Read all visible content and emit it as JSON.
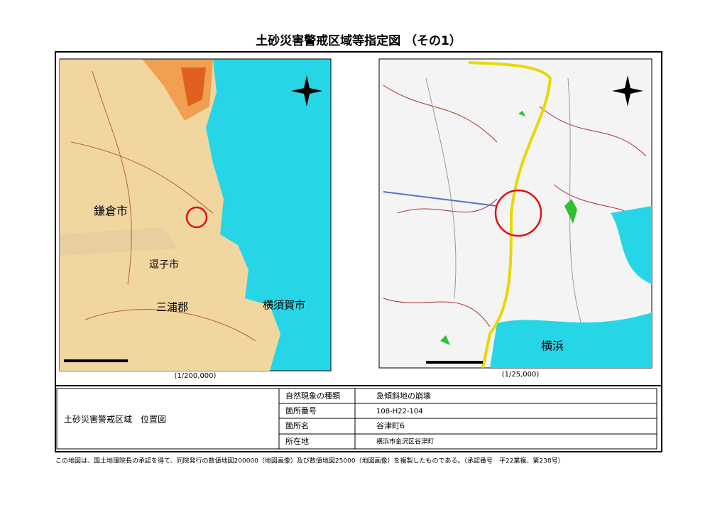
{
  "header": {
    "title": "土砂災害警戒区域等指定図 （その1）"
  },
  "maps": [
    {
      "scale": "(1/200,000)",
      "labels": [
        "鎌倉市",
        "逗子市",
        "横須賀市",
        "三浦郡"
      ]
    },
    {
      "scale": "(1/25,000)",
      "labels": [
        "横浜"
      ]
    }
  ],
  "table": {
    "caption": "土砂災害警戒区域　位置図",
    "rows": [
      [
        "自然現象の種類",
        "急傾斜地の崩壊"
      ],
      [
        "箇所番号",
        "108-H22-104"
      ],
      [
        "箇所名",
        "谷津町6"
      ],
      [
        "所在地",
        "横浜市金沢区谷津町"
      ]
    ]
  },
  "footer": {
    "note": "この地図は、国土地理院長の承認を得て、同院発行の数値地図200000（地図画像）及び数値地図25000（地図画像）を複製したものである。（承認番号　平22業複、第238号）"
  }
}
